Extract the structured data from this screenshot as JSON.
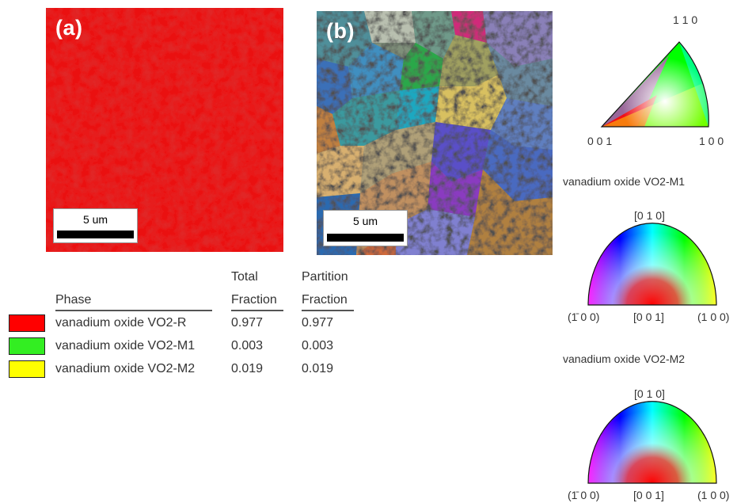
{
  "panels": [
    {
      "letter": "(a)",
      "scale_label": "5 um"
    },
    {
      "letter": "(b)",
      "scale_label": "5 um"
    }
  ],
  "legend": {
    "headers": {
      "phase": "Phase",
      "total_line1": "Total",
      "total_line2": "Fraction",
      "partition_line1": "Partition",
      "partition_line2": "Fraction"
    },
    "rows": [
      {
        "color": "#ff0000",
        "name": "vanadium oxide VO2-R",
        "total": "0.977",
        "partition": "0.977"
      },
      {
        "color": "#33ee22",
        "name": "vanadium oxide VO2-M1",
        "total": "0.003",
        "partition": "0.003"
      },
      {
        "color": "#ffff00",
        "name": "vanadium oxide VO2-M2",
        "total": "0.019",
        "partition": "0.019"
      }
    ]
  },
  "ipf": {
    "triangle": {
      "top": "1 1 0",
      "left": "0 0 1",
      "right": "1 0 0"
    },
    "m1": {
      "title": "vanadium oxide VO2-M1",
      "top": "[0 1 0]",
      "left": "(1̄ 0 0)",
      "center": "[0 0 1]",
      "right": "(1 0 0)"
    },
    "m2": {
      "title": "vanadium oxide VO2-M2",
      "top": "[0 1 0]",
      "left": "(1̄ 0 0)",
      "center": "[0 0 1]",
      "right": "(1 0 0)"
    }
  }
}
